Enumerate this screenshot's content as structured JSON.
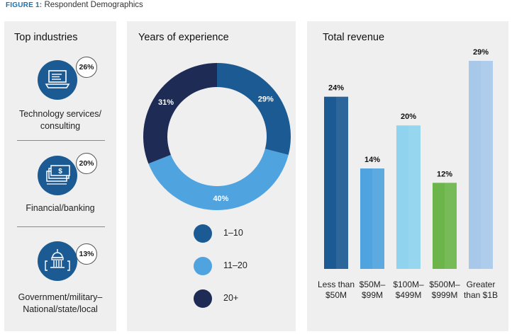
{
  "figure": {
    "label": "FIGURE 1:",
    "title": "Respondent Demographics"
  },
  "industries": {
    "title": "Top industries",
    "items": [
      {
        "pct": "26%",
        "label": "Technology services/ consulting",
        "lines": [
          "Technology services/",
          "consulting"
        ],
        "icon": "laptop-icon"
      },
      {
        "pct": "20%",
        "label": "Financial/banking",
        "lines": [
          "Financial/banking"
        ],
        "icon": "money-stack-icon"
      },
      {
        "pct": "13%",
        "label": "Government/military– National/state/local",
        "lines": [
          "Government/military–",
          "National/state/local"
        ],
        "icon": "capitol-building-icon"
      }
    ]
  },
  "colors": {
    "navy": "#1d2b55",
    "dark_blue": "#1b5a93",
    "mid_blue": "#4fa3de",
    "light_cyan": "#8fd3ee",
    "green": "#6cb54a",
    "pale_blue": "#a8c8ea"
  },
  "chart_data": [
    {
      "type": "pie",
      "title": "Years of experience",
      "categories": [
        "1–10",
        "11–20",
        "20+"
      ],
      "values": [
        29,
        40,
        31
      ],
      "data_labels": [
        "29%",
        "40%",
        "31%"
      ],
      "colors": [
        "#1b5a93",
        "#4fa3de",
        "#1d2b55"
      ],
      "legend": "bottom"
    },
    {
      "type": "bar",
      "title": "Total revenue",
      "categories": [
        [
          "Less than",
          "$50M"
        ],
        [
          "$50M–",
          "$99M"
        ],
        [
          "$100M–",
          "$499M"
        ],
        [
          "$500M–",
          "$999M"
        ],
        [
          "Greater",
          "than $1B"
        ]
      ],
      "values": [
        24,
        14,
        20,
        12,
        29
      ],
      "data_labels": [
        "24%",
        "14%",
        "20%",
        "12%",
        "29%"
      ],
      "colors": [
        "#1b5a93",
        "#4fa3de",
        "#8fd3ee",
        "#6cb54a",
        "#a8c8ea"
      ],
      "ylim": [
        0,
        29
      ]
    }
  ]
}
